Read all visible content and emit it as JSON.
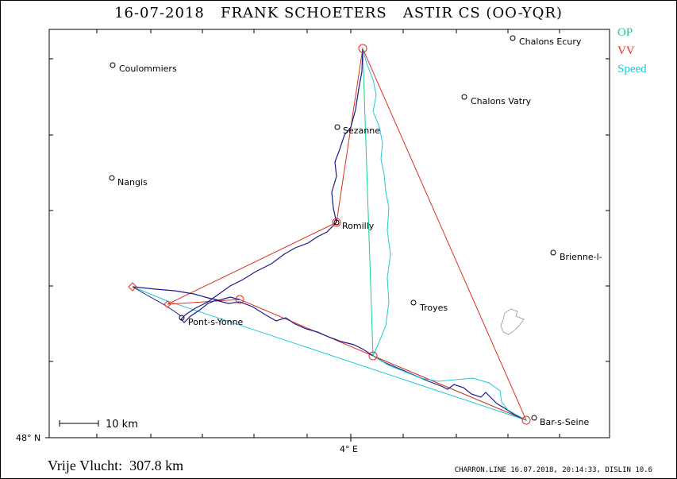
{
  "header": {
    "title": "16-07-2018   FRANK SCHOETERS   ASTIR CS (OO-YQR)"
  },
  "legend": {
    "op": "OP",
    "vv": "VV",
    "speed": "Speed"
  },
  "colors": {
    "op": "#10d090",
    "vv": "#e03020",
    "speed": "#20c8d8",
    "track": "#1a1a90",
    "lake": "#a8a8a8"
  },
  "axes": {
    "lat_label": "48° N",
    "lon_label": "4° E"
  },
  "scale": {
    "label": "10 km"
  },
  "towns": [
    {
      "name": "Coulommiers"
    },
    {
      "name": "Nangis"
    },
    {
      "name": "Sezanne"
    },
    {
      "name": "Romilly"
    },
    {
      "name": "Chalons Ecury"
    },
    {
      "name": "Chalons Vatry"
    },
    {
      "name": "Brienne-l-"
    },
    {
      "name": "Troyes"
    },
    {
      "name": "Pont-s-Yonne"
    },
    {
      "name": "Bar-s-Seine"
    }
  ],
  "distance": "Vrije Vlucht:  307.8 km",
  "footer": "CHARRON.LINE 16.07.2018, 20:14:33, DISLIN 10.6"
}
